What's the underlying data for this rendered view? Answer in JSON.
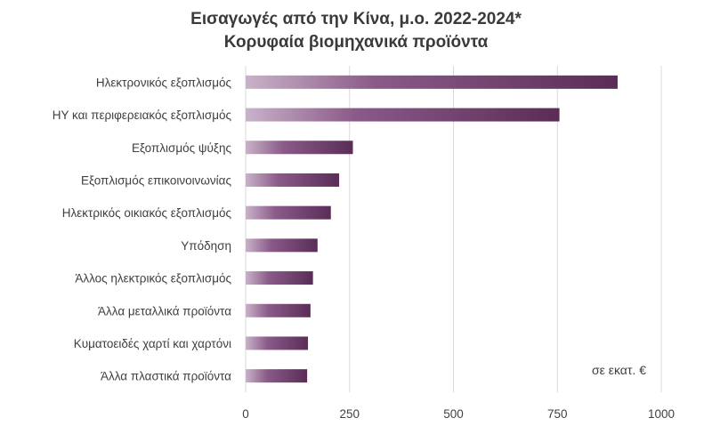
{
  "chart_data": {
    "type": "bar",
    "orientation": "horizontal",
    "title": "Εισαγωγές από την Κίνα, μ.ο. 2022-2024*",
    "subtitle": "Κορυφαία βιομηχανικά προϊόντα",
    "categories": [
      "Ηλεκτρονικός εξοπλισμός",
      "ΗΥ και περιφερειακός εξοπλισμός",
      "Εξοπλισμός ψύξης",
      "Εξοπλισμός επικοινοινωνίας",
      "Ηλεκτρικός οικιακός εξοπλισμός",
      "Υπόδηση",
      "Άλλος ηλεκτρικός εξοπλισμός",
      "Άλλα μεταλλικά προϊόντα",
      "Κυματοειδές χαρτί και χαρτόνι",
      "Άλλα πλαστικά προϊόντα"
    ],
    "values": [
      895,
      755,
      258,
      225,
      205,
      173,
      162,
      156,
      150,
      148
    ],
    "xlim": [
      0,
      1000
    ],
    "xticks": [
      "0",
      "250",
      "500",
      "750",
      "1000"
    ],
    "unit_note": "σε εκατ. €",
    "grid": true,
    "bar_color": "#6b3d6a"
  }
}
